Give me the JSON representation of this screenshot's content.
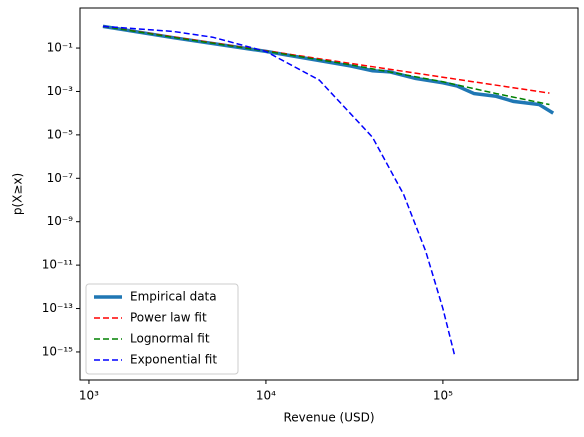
{
  "chart_data": {
    "type": "line",
    "xlabel": "Revenue (USD)",
    "ylabel": "p(X≥x)",
    "xscale": "log",
    "yscale": "log",
    "legend": "lower left",
    "xlim": [
      890,
      580000
    ],
    "ylim": [
      5.1e-17,
      7.0
    ],
    "xticks": [
      {
        "value": 1000,
        "label": "10³"
      },
      {
        "value": 10000,
        "label": "10⁴"
      },
      {
        "value": 100000,
        "label": "10⁵"
      }
    ],
    "yticks": [
      {
        "value": 1e-15,
        "label": "10⁻¹⁵"
      },
      {
        "value": 1e-13,
        "label": "10⁻¹³"
      },
      {
        "value": 1e-11,
        "label": "10⁻¹¹"
      },
      {
        "value": 1e-09,
        "label": "10⁻⁹"
      },
      {
        "value": 1e-07,
        "label": "10⁻⁷"
      },
      {
        "value": 1e-05,
        "label": "10⁻⁵"
      },
      {
        "value": 0.001,
        "label": "10⁻³"
      },
      {
        "value": 0.1,
        "label": "10⁻¹"
      }
    ],
    "series": [
      {
        "name": "Empirical data",
        "color": "#1f77b4",
        "style": "solid",
        "width": 3.5,
        "x": [
          1200,
          3000,
          10000,
          30000,
          40000,
          50000,
          70000,
          100000,
          120000,
          150000,
          200000,
          250000,
          350000,
          420000
        ],
        "values": [
          1,
          0.3,
          0.07,
          0.015,
          0.009,
          0.008,
          0.004,
          0.0025,
          0.0018,
          0.0008,
          0.0006,
          0.00035,
          0.00025,
          0.0001
        ]
      },
      {
        "name": "Power law fit",
        "color": "#ff0000",
        "style": "dashed",
        "width": 1.5,
        "x": [
          1200,
          3000,
          10000,
          30000,
          100000,
          400000
        ],
        "values": [
          1,
          0.327,
          0.0752,
          0.0197,
          0.00453,
          0.00084
        ]
      },
      {
        "name": "Lognormal fit",
        "color": "#008000",
        "style": "dashed",
        "width": 1.5,
        "x": [
          1200,
          3000,
          10000,
          30000,
          100000,
          200000,
          400000
        ],
        "values": [
          1,
          0.31,
          0.072,
          0.017,
          0.0028,
          0.0008,
          0.00025
        ]
      },
      {
        "name": "Exponential fit",
        "color": "#0000ff",
        "style": "dashed",
        "width": 1.5,
        "x": [
          1200,
          3000,
          5000,
          10000,
          20000,
          40000,
          60000,
          80000,
          100000,
          115000,
          117000
        ],
        "values": [
          1,
          0.58,
          0.316,
          0.0695,
          0.00336,
          7.8e-06,
          1.8e-08,
          4.3e-11,
          1e-13,
          1.06e-15,
          5.8e-16
        ]
      }
    ]
  }
}
